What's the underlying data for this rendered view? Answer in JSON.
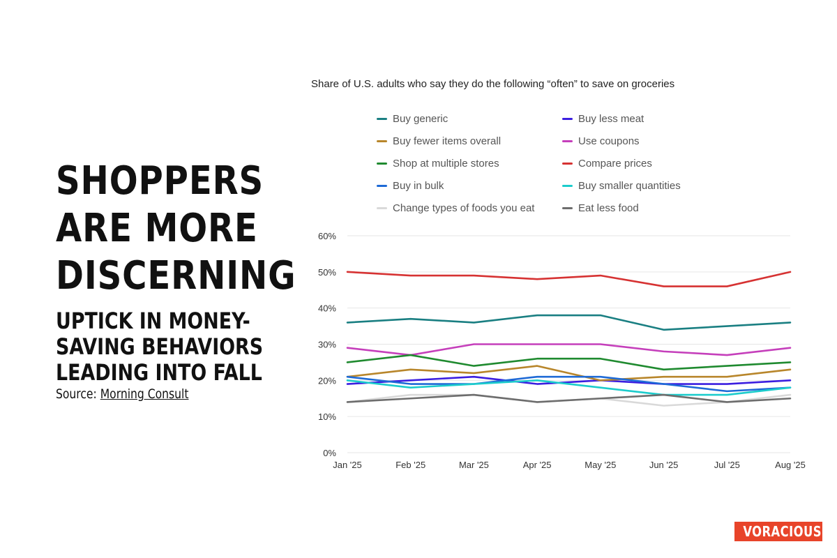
{
  "headline": "SHOPPERS ARE MORE DISCERNING",
  "subheadline": "UPTICK IN MONEY-SAVING BEHAVIORS LEADING INTO FALL",
  "source_label": "Source:",
  "source_name": "Morning Consult",
  "brand": "VORACIOUS",
  "colors": {
    "brand": "#e8442a",
    "grid": "#e6e6e6"
  },
  "chart_data": {
    "type": "line",
    "title": "Share of U.S. adults who say they do the following “often” to save on groceries",
    "x": [
      "Jan '25",
      "Feb '25",
      "Mar '25",
      "Apr '25",
      "May '25",
      "Jun '25",
      "Jul '25",
      "Aug '25"
    ],
    "ylim": [
      0,
      60
    ],
    "yticks": [
      0,
      10,
      20,
      30,
      40,
      50,
      60
    ],
    "ytick_labels": [
      "0%",
      "10%",
      "20%",
      "30%",
      "40%",
      "50%",
      "60%"
    ],
    "grid": true,
    "legend_position": "top",
    "series": [
      {
        "name": "Buy generic",
        "color": "#1a7f82",
        "values": [
          36,
          37,
          36,
          38,
          38,
          34,
          35,
          36
        ]
      },
      {
        "name": "Buy less meat",
        "color": "#3b1ee0",
        "values": [
          19,
          20,
          21,
          19,
          20,
          19,
          19,
          20
        ]
      },
      {
        "name": "Buy fewer items overall",
        "color": "#b8862b",
        "values": [
          21,
          23,
          22,
          24,
          20,
          21,
          21,
          23
        ]
      },
      {
        "name": "Use coupons",
        "color": "#c53fbb",
        "values": [
          29,
          27,
          30,
          30,
          30,
          28,
          27,
          29
        ]
      },
      {
        "name": "Shop at multiple stores",
        "color": "#1f8a2f",
        "values": [
          25,
          27,
          24,
          26,
          26,
          23,
          24,
          25
        ]
      },
      {
        "name": "Compare prices",
        "color": "#d63232",
        "values": [
          50,
          49,
          49,
          48,
          49,
          46,
          46,
          50
        ]
      },
      {
        "name": "Buy in bulk",
        "color": "#1e6ad6",
        "values": [
          21,
          19,
          19,
          21,
          21,
          19,
          17,
          18
        ]
      },
      {
        "name": "Buy smaller quantities",
        "color": "#1ccccc",
        "values": [
          20,
          18,
          19,
          20,
          18,
          16,
          16,
          18
        ]
      },
      {
        "name": "Change types of foods you eat",
        "color": "#d9d9d9",
        "values": [
          14,
          16,
          16,
          14,
          15,
          13,
          14,
          16
        ]
      },
      {
        "name": "Eat less food",
        "color": "#6d6d6d",
        "values": [
          14,
          15,
          16,
          14,
          15,
          16,
          14,
          15
        ]
      }
    ]
  }
}
